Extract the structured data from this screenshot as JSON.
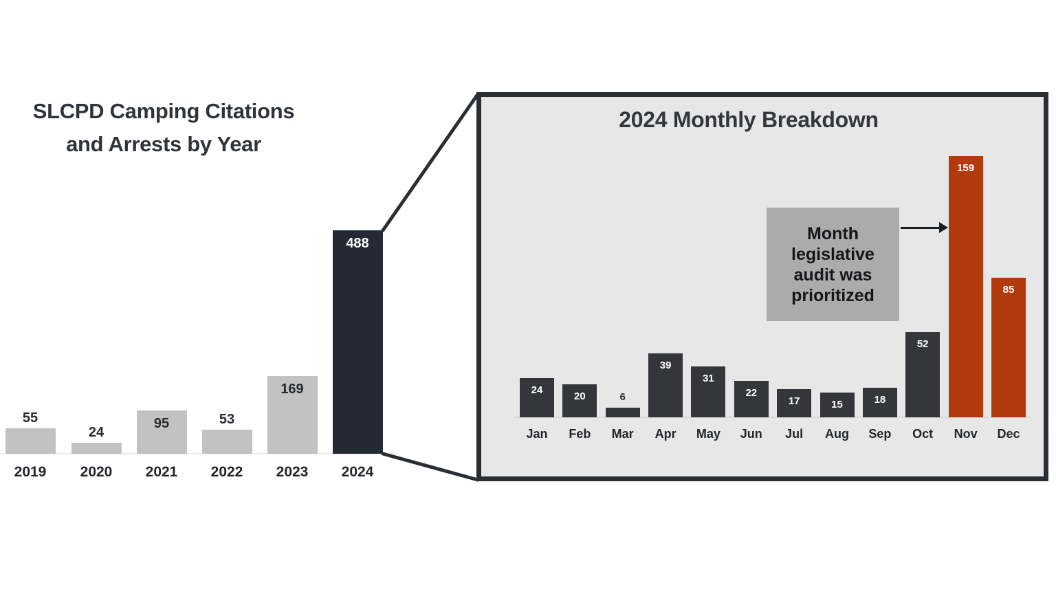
{
  "page": {
    "background": "#ffffff",
    "description_colors": {
      "gray_bar": "#c2c2c2",
      "dark_navy_bar": "#242a33",
      "charcoal_bar": "#343639",
      "rust_highlight_bar": "#b23a0d",
      "panel_background": "#e7e7e7",
      "panel_border": "#2a2e33",
      "annotation_background": "#ababab",
      "title_text": "#30343a"
    }
  },
  "chart_data": [
    {
      "id": "yearly",
      "type": "bar",
      "title": "SLCPD Camping Citations and Arrests by Year",
      "title_lines": [
        "SLCPD Camping Citations",
        "and Arrests by Year"
      ],
      "categories": [
        "2019",
        "2020",
        "2021",
        "2022",
        "2023",
        "2024"
      ],
      "values": [
        55,
        24,
        95,
        53,
        169,
        488
      ],
      "xlabel": "",
      "ylabel": "",
      "ylim": [
        0,
        500
      ],
      "grid": false,
      "legend": false,
      "bars": [
        {
          "category": "2019",
          "value": 55,
          "color": "#c2c2c2",
          "value_label_inside": false
        },
        {
          "category": "2020",
          "value": 24,
          "color": "#c2c2c2",
          "value_label_inside": false
        },
        {
          "category": "2021",
          "value": 95,
          "color": "#c2c2c2",
          "value_label_inside": true
        },
        {
          "category": "2022",
          "value": 53,
          "color": "#c2c2c2",
          "value_label_inside": false
        },
        {
          "category": "2023",
          "value": 169,
          "color": "#c2c2c2",
          "value_label_inside": true
        },
        {
          "category": "2024",
          "value": 488,
          "color": "#242a33",
          "value_label_inside": true
        }
      ]
    },
    {
      "id": "monthly",
      "type": "bar",
      "title": "2024 Monthly Breakdown",
      "categories": [
        "Jan",
        "Feb",
        "Mar",
        "Apr",
        "May",
        "Jun",
        "Jul",
        "Aug",
        "Sep",
        "Oct",
        "Nov",
        "Dec"
      ],
      "values": [
        24,
        20,
        6,
        39,
        31,
        22,
        17,
        15,
        18,
        52,
        159,
        85
      ],
      "xlabel": "",
      "ylabel": "",
      "ylim": [
        0,
        170
      ],
      "grid": false,
      "legend": false,
      "bars": [
        {
          "category": "Jan",
          "value": 24,
          "color": "#343639",
          "value_label_inside": true
        },
        {
          "category": "Feb",
          "value": 20,
          "color": "#343639",
          "value_label_inside": true
        },
        {
          "category": "Mar",
          "value": 6,
          "color": "#343639",
          "value_label_inside": false
        },
        {
          "category": "Apr",
          "value": 39,
          "color": "#343639",
          "value_label_inside": true
        },
        {
          "category": "May",
          "value": 31,
          "color": "#343639",
          "value_label_inside": true
        },
        {
          "category": "Jun",
          "value": 22,
          "color": "#343639",
          "value_label_inside": true
        },
        {
          "category": "Jul",
          "value": 17,
          "color": "#343639",
          "value_label_inside": true
        },
        {
          "category": "Aug",
          "value": 15,
          "color": "#343639",
          "value_label_inside": true
        },
        {
          "category": "Sep",
          "value": 18,
          "color": "#343639",
          "value_label_inside": true
        },
        {
          "category": "Oct",
          "value": 52,
          "color": "#343639",
          "value_label_inside": true
        },
        {
          "category": "Nov",
          "value": 159,
          "color": "#b23a0d",
          "value_label_inside": true
        },
        {
          "category": "Dec",
          "value": 85,
          "color": "#b23a0d",
          "value_label_inside": true
        }
      ],
      "annotation": {
        "text": "Month legislative audit was prioritized",
        "lines": [
          "Month",
          "legislative",
          "audit was",
          "prioritized"
        ],
        "box_color": "#ababab",
        "text_color": "#141619",
        "points_to": "Nov"
      }
    }
  ]
}
